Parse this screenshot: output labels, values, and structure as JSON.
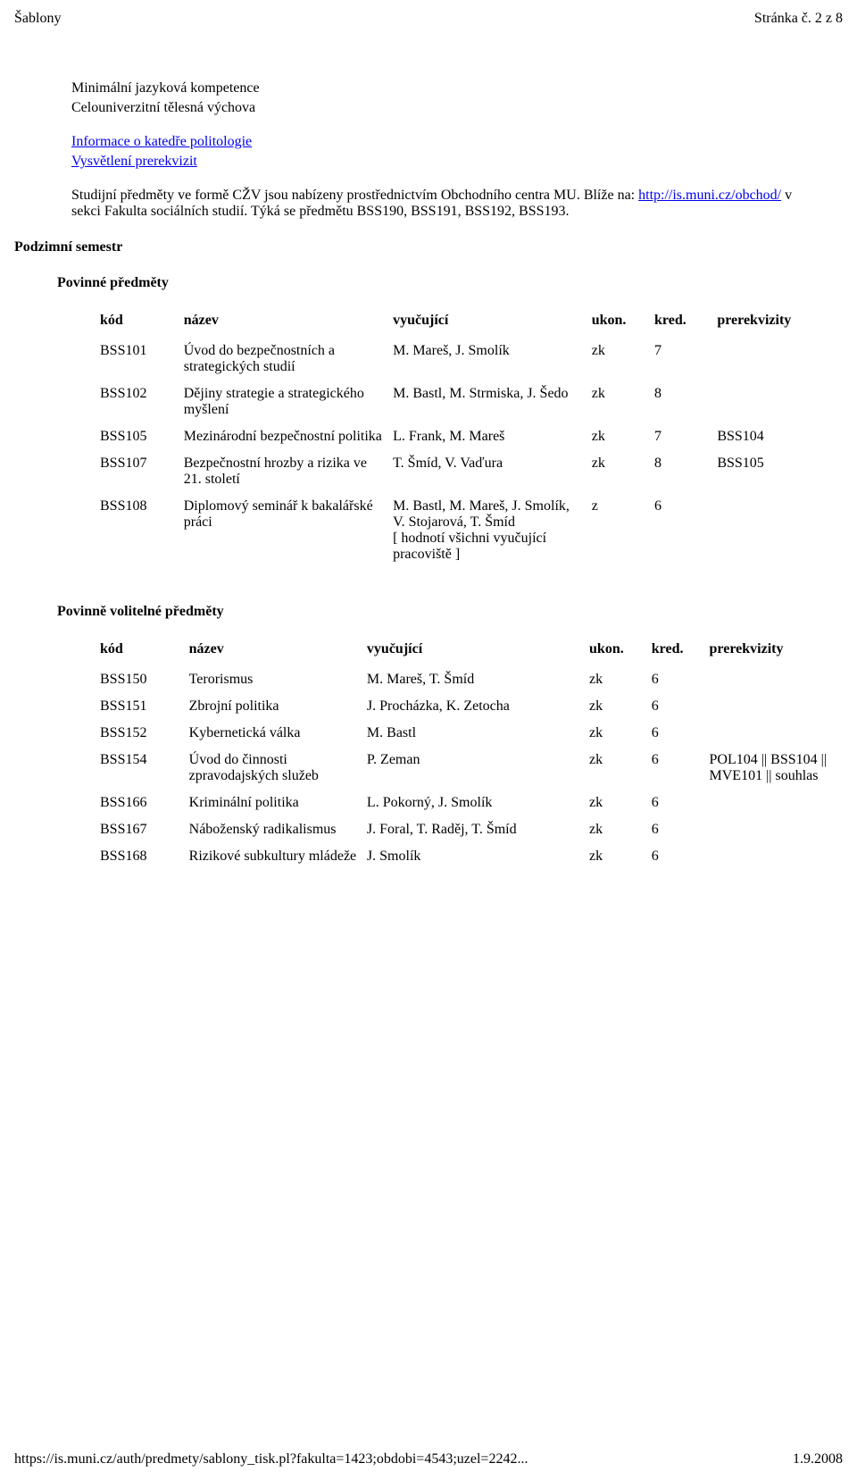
{
  "header": {
    "left": "Šablony",
    "right": "Stránka č. 2 z 8"
  },
  "intro": {
    "l1": "Minimální jazyková kompetence",
    "l2": "Celouniverzitní tělesná výchova",
    "link1": "Informace o katedře politologie",
    "link2": "Vysvětlení prerekvizit",
    "p2a": "Studijní předměty ve formě CŽV jsou nabízeny prostřednictvím Obchodního centra MU. Blíže na:",
    "link3": "http://is.muni.cz/obchod/",
    "p2b": " v sekci Fakulta sociálních studií. Týká se předmětu BSS190, BSS191, BSS192, BSS193."
  },
  "section1": {
    "h1": "Podzimní semestr",
    "h2": "Povinné předměty"
  },
  "t1": {
    "headers": {
      "kod": "kód",
      "nazev": "název",
      "vyuc": "vyučující",
      "ukon": "ukon.",
      "kred": "kred.",
      "prereq": "prerekvizity"
    },
    "rows": [
      {
        "kod": "BSS101",
        "nazev": "Úvod do bezpečnostních a strategických studií",
        "vyuc": "M. Mareš, J. Smolík",
        "ukon": "zk",
        "kred": "7",
        "prereq": ""
      },
      {
        "kod": "BSS102",
        "nazev": "Dějiny strategie a strategického myšlení",
        "vyuc": "M. Bastl, M. Strmiska, J. Šedo",
        "ukon": "zk",
        "kred": "8",
        "prereq": ""
      },
      {
        "kod": "BSS105",
        "nazev": "Mezinárodní bezpečnostní politika",
        "vyuc": "L. Frank, M. Mareš",
        "ukon": "zk",
        "kred": "7",
        "prereq": "BSS104"
      },
      {
        "kod": "BSS107",
        "nazev": "Bezpečnostní hrozby a rizika ve 21. století",
        "vyuc": "T. Šmíd, V. Vaďura",
        "ukon": "zk",
        "kred": "8",
        "prereq": "BSS105"
      },
      {
        "kod": "BSS108",
        "nazev": "Diplomový seminář k bakalářské práci",
        "vyuc": "M. Bastl, M. Mareš, J. Smolík, V. Stojarová, T. Šmíd\n[ hodnotí všichni vyučující pracoviště ]",
        "ukon": "z",
        "kred": "6",
        "prereq": ""
      }
    ]
  },
  "section2": {
    "h": "Povinně volitelné předměty"
  },
  "t2": {
    "headers": {
      "kod": "kód",
      "nazev": "název",
      "vyuc": "vyučující",
      "ukon": "ukon.",
      "kred": "kred.",
      "prereq": "prerekvizity"
    },
    "rows": [
      {
        "kod": "BSS150",
        "nazev": "Terorismus",
        "vyuc": "M. Mareš, T. Šmíd",
        "ukon": "zk",
        "kred": "6",
        "prereq": ""
      },
      {
        "kod": "BSS151",
        "nazev": "Zbrojní politika",
        "vyuc": "J. Procházka, K. Zetocha",
        "ukon": "zk",
        "kred": "6",
        "prereq": ""
      },
      {
        "kod": "BSS152",
        "nazev": "Kybernetická válka",
        "vyuc": "M. Bastl",
        "ukon": "zk",
        "kred": "6",
        "prereq": ""
      },
      {
        "kod": "BSS154",
        "nazev": "Úvod do činnosti zpravodajských služeb",
        "vyuc": "P. Zeman",
        "ukon": "zk",
        "kred": "6",
        "prereq": "POL104 || BSS104 || MVE101 || souhlas"
      },
      {
        "kod": "BSS166",
        "nazev": "Kriminální politika",
        "vyuc": "L. Pokorný, J. Smolík",
        "ukon": "zk",
        "kred": "6",
        "prereq": ""
      },
      {
        "kod": "BSS167",
        "nazev": "Náboženský radikalismus",
        "vyuc": "J. Foral, T. Raděj, T. Šmíd",
        "ukon": "zk",
        "kred": "6",
        "prereq": ""
      },
      {
        "kod": "BSS168",
        "nazev": "Rizikové subkultury mládeže",
        "vyuc": "J. Smolík",
        "ukon": "zk",
        "kred": "6",
        "prereq": ""
      }
    ]
  },
  "footer": {
    "url": "https://is.muni.cz/auth/predmety/sablony_tisk.pl?fakulta=1423;obdobi=4543;uzel=2242...",
    "date": "1.9.2008"
  }
}
